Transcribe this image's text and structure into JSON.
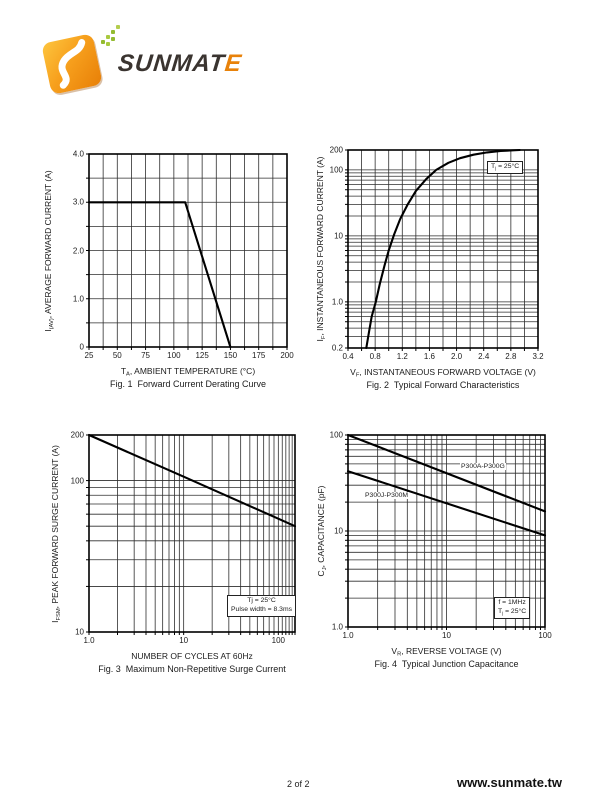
{
  "logo": {
    "brand": "SUNMATE",
    "brand_main": "SUNMAT",
    "brand_accent": "E",
    "orange": "#f7a01d",
    "orange_dark": "#e87f07",
    "green": "#93bb30",
    "text_color": "#3a3430"
  },
  "footer": {
    "page_label": "2 of 2",
    "website": "www.sunmate.tw"
  },
  "chart_data": [
    {
      "id": "fig1",
      "type": "line",
      "title": "Fig. 1  Forward Current Derating Curve",
      "xlabel": "TA, AMBIENT TEMPERATURE (°C)",
      "xlabel_rich": [
        [
          "T",
          0
        ],
        [
          "A",
          1
        ],
        [
          ", AMBIENT TEMPERATURE (°C)",
          0
        ]
      ],
      "ylabel": "I(AV), AVERAGE FORWARD CURRENT (A)",
      "ylabel_rich": [
        [
          "I",
          0
        ],
        [
          "(AV)",
          1
        ],
        [
          ", AVERAGE FORWARD CURRENT (A)",
          0
        ]
      ],
      "xscale": "linear",
      "yscale": "linear",
      "xlim": [
        25,
        200
      ],
      "ylim": [
        0,
        4
      ],
      "xgrid_step": 12.5,
      "ygrid_step": 0.5,
      "xticks": {
        "values": [
          25,
          50,
          75,
          100,
          125,
          150,
          175,
          200
        ],
        "labels": [
          "25",
          "50",
          "75",
          "100",
          "125",
          "150",
          "175",
          "200"
        ]
      },
      "yticks": {
        "values": [
          0,
          1,
          2,
          3,
          4
        ],
        "labels": [
          "0",
          "1.0",
          "2.0",
          "3.0",
          "4.0"
        ]
      },
      "grid": true,
      "series": [
        {
          "name": "derating-curve",
          "points": [
            [
              25,
              3
            ],
            [
              110,
              3
            ],
            [
              150,
              0
            ]
          ]
        }
      ]
    },
    {
      "id": "fig2",
      "type": "line",
      "title": "Fig. 2  Typical Forward Characteristics",
      "xlabel": "VF, INSTANTANEOUS FORWARD VOLTAGE (V)",
      "xlabel_rich": [
        [
          "V",
          0
        ],
        [
          "F",
          1
        ],
        [
          ", INSTANTANEOUS FORWARD VOLTAGE (V)",
          0
        ]
      ],
      "ylabel": "IF, INSTANTANEOUS FORWARD CURRENT (A)",
      "ylabel_rich": [
        [
          "I",
          0
        ],
        [
          "F",
          1
        ],
        [
          ", INSTANTANEOUS FORWARD CURRENT (A)",
          0
        ]
      ],
      "xscale": "linear",
      "yscale": "log",
      "xlim": [
        0.4,
        3.2
      ],
      "ylim": [
        0.2,
        200
      ],
      "xgrid_step": 0.2,
      "xticks": {
        "values": [
          0.4,
          0.8,
          1.2,
          1.6,
          2.0,
          2.4,
          2.8,
          3.2
        ],
        "labels": [
          "0.4",
          "0.8",
          "1.2",
          "1.6",
          "2.0",
          "2.4",
          "2.8",
          "3.2"
        ]
      },
      "yticks": {
        "values": [
          0.2,
          1,
          10,
          100,
          200
        ],
        "labels": [
          "0.2",
          "1.0",
          "10",
          "100",
          "200"
        ]
      },
      "grid": true,
      "annotation": {
        "lines": [
          "Tj = 25°C"
        ],
        "lines_rich": [
          [
            [
              "T",
              0
            ],
            [
              "j",
              1
            ],
            [
              " = 25°C",
              0
            ]
          ]
        ]
      },
      "series": [
        {
          "name": "forward-characteristic",
          "points": [
            [
              0.67,
              0.2
            ],
            [
              0.71,
              0.35
            ],
            [
              0.75,
              0.6
            ],
            [
              0.81,
              1
            ],
            [
              0.87,
              1.9
            ],
            [
              0.94,
              3.6
            ],
            [
              1.0,
              6
            ],
            [
              1.08,
              10.5
            ],
            [
              1.17,
              18
            ],
            [
              1.28,
              30
            ],
            [
              1.4,
              48
            ],
            [
              1.55,
              72
            ],
            [
              1.7,
              100
            ],
            [
              1.88,
              128
            ],
            [
              2.05,
              150
            ],
            [
              2.25,
              170
            ],
            [
              2.45,
              184
            ],
            [
              2.65,
              193
            ],
            [
              2.93,
              200
            ]
          ]
        }
      ]
    },
    {
      "id": "fig3",
      "type": "line",
      "title": "Fig. 3  Maximum Non-Repetitive Surge Current",
      "xlabel": "NUMBER OF CYCLES AT 60Hz",
      "xlabel_rich": [
        [
          "NUMBER OF CYCLES AT 60Hz",
          0
        ]
      ],
      "ylabel": "IFSM, PEAK FORWARD SURGE CURRENT (A)",
      "ylabel_rich": [
        [
          "I",
          0
        ],
        [
          "FSM",
          1
        ],
        [
          ", PEAK FORWARD SURGE CURRENT (A)",
          0
        ]
      ],
      "xscale": "log",
      "yscale": "log",
      "xlim": [
        1,
        150
      ],
      "ylim": [
        10,
        200
      ],
      "xgrid_extra": [
        110,
        120,
        130,
        140,
        150
      ],
      "xticks": {
        "values": [
          1,
          10,
          100
        ],
        "labels": [
          "1.0",
          "10",
          "100"
        ]
      },
      "yticks": {
        "values": [
          10,
          100,
          200
        ],
        "labels": [
          "10",
          "100",
          "200"
        ]
      },
      "grid": true,
      "annotation": {
        "lines": [
          "Tj = 25°C",
          "Pulse width = 8.3ms"
        ],
        "lines_rich": [
          [
            [
              "Tj = 25°C",
              0
            ]
          ],
          [
            [
              "Pulse width = 8.3ms",
              0
            ]
          ]
        ]
      },
      "series": [
        {
          "name": "surge-current",
          "points": [
            [
              1,
              200
            ],
            [
              10,
              106
            ],
            [
              100,
              56
            ],
            [
              150,
              50
            ]
          ]
        }
      ]
    },
    {
      "id": "fig4",
      "type": "line",
      "title": "Fig. 4  Typical Junction Capacitance",
      "xlabel": "VR, REVERSE VOLTAGE (V)",
      "xlabel_rich": [
        [
          "V",
          0
        ],
        [
          "R",
          1
        ],
        [
          ", REVERSE VOLTAGE (V)",
          0
        ]
      ],
      "ylabel": "CJ, CAPACITANCE (pF)",
      "ylabel_rich": [
        [
          "C",
          0
        ],
        [
          "J",
          1
        ],
        [
          ", CAPACITANCE (pF)",
          0
        ]
      ],
      "xscale": "log",
      "yscale": "log",
      "xlim": [
        1,
        100
      ],
      "ylim": [
        1,
        100
      ],
      "xticks": {
        "values": [
          1,
          10,
          100
        ],
        "labels": [
          "1.0",
          "10",
          "100"
        ]
      },
      "yticks": {
        "values": [
          1,
          10,
          100
        ],
        "labels": [
          "1.0",
          "10",
          "100"
        ]
      },
      "grid": true,
      "annotation": {
        "lines": [
          "f = 1MHz",
          "Tj = 25°C"
        ],
        "lines_rich": [
          [
            [
              "f = 1MHz",
              0
            ]
          ],
          [
            [
              "T",
              0
            ],
            [
              "j",
              1
            ],
            [
              " = 25°C",
              0
            ]
          ]
        ]
      },
      "series": [
        {
          "name": "P300A-P300G",
          "label": "P300A-P300G",
          "points": [
            [
              1,
              100
            ],
            [
              100,
              16
            ]
          ]
        },
        {
          "name": "P300J-P300M",
          "label": "P300J-P300M",
          "points": [
            [
              1,
              42
            ],
            [
              100,
              9
            ]
          ]
        }
      ]
    }
  ]
}
